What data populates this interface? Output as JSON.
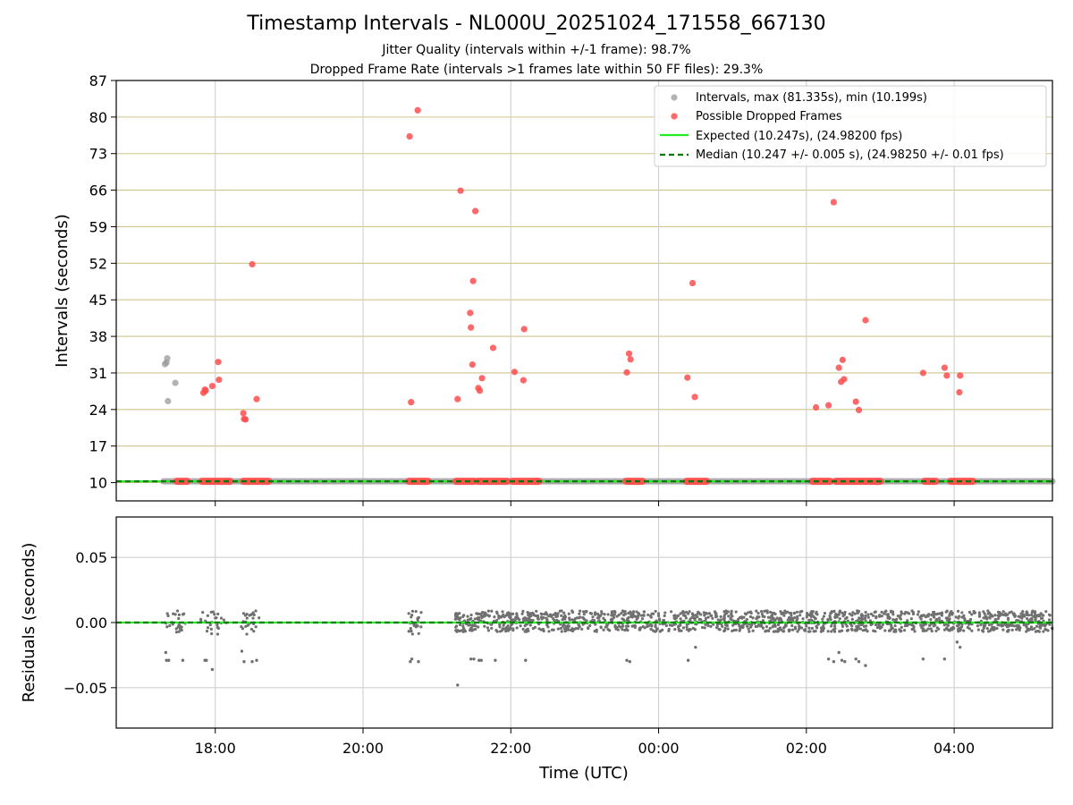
{
  "chart_data": [
    {
      "type": "scatter",
      "title": "Timestamp Intervals - NL000U_20251024_171558_667130",
      "subtitle_lines": [
        "Jitter Quality (intervals within +/-1 frame): 98.7%",
        "Dropped Frame Rate (intervals >1 frames late within 50 FF files): 29.3%"
      ],
      "xlabel": "",
      "ylabel": "Intervals (seconds)",
      "x_units": "hours since 17:00 UTC",
      "xlim": [
        -0.34,
        12.33
      ],
      "ylim": [
        6.5,
        87
      ],
      "yticks": [
        10,
        17,
        24,
        31,
        38,
        45,
        52,
        59,
        66,
        73,
        80,
        87
      ],
      "ygrid_color": "#cfc48c",
      "legend_position": "top-right",
      "legend": [
        "Intervals, max (81.335s), min (10.199s)",
        "Possible Dropped Frames",
        "Expected (10.247s), (24.98200 fps)",
        "Median (10.247 +/- 0.005 s), (24.98250 +/- 0.01 fps)"
      ],
      "series": [
        {
          "name": "Intervals, max (81.335s), min (10.199s)",
          "color": "#999999",
          "points": [
            [
              0.32,
              32.7
            ],
            [
              0.34,
              33.0
            ],
            [
              0.35,
              33.8
            ],
            [
              0.36,
              25.6
            ],
            [
              0.46,
              29.1
            ]
          ],
          "baseline": {
            "y": 10.25,
            "x_segments": [
              [
                0.3,
                12.33
              ]
            ]
          }
        },
        {
          "name": "Possible Dropped Frames",
          "color": "#ff4d4d",
          "points": [
            [
              0.84,
              27.2
            ],
            [
              0.86,
              27.8
            ],
            [
              0.87,
              27.6
            ],
            [
              0.96,
              28.5
            ],
            [
              1.04,
              33.1
            ],
            [
              1.05,
              29.7
            ],
            [
              1.38,
              23.3
            ],
            [
              1.39,
              22.2
            ],
            [
              1.41,
              22.1
            ],
            [
              1.5,
              51.8
            ],
            [
              1.56,
              26.0
            ],
            [
              3.63,
              76.3
            ],
            [
              3.65,
              25.4
            ],
            [
              3.74,
              81.3
            ],
            [
              4.28,
              26.0
            ],
            [
              4.32,
              65.9
            ],
            [
              4.45,
              42.5
            ],
            [
              4.46,
              39.7
            ],
            [
              4.48,
              32.6
            ],
            [
              4.49,
              48.6
            ],
            [
              4.52,
              62.0
            ],
            [
              4.56,
              28.1
            ],
            [
              4.58,
              27.6
            ],
            [
              4.61,
              30.0
            ],
            [
              4.76,
              35.8
            ],
            [
              5.05,
              31.2
            ],
            [
              5.18,
              39.4
            ],
            [
              5.17,
              29.6
            ],
            [
              6.57,
              31.1
            ],
            [
              6.6,
              34.7
            ],
            [
              6.62,
              33.6
            ],
            [
              7.39,
              30.1
            ],
            [
              7.46,
              48.2
            ],
            [
              7.49,
              26.4
            ],
            [
              9.13,
              24.4
            ],
            [
              9.3,
              24.8
            ],
            [
              9.37,
              63.7
            ],
            [
              9.44,
              32.0
            ],
            [
              9.47,
              29.3
            ],
            [
              9.49,
              33.5
            ],
            [
              9.51,
              29.8
            ],
            [
              9.67,
              25.5
            ],
            [
              9.71,
              23.9
            ],
            [
              9.8,
              41.1
            ],
            [
              10.58,
              31.0
            ],
            [
              10.87,
              32.0
            ],
            [
              10.9,
              30.5
            ],
            [
              11.07,
              27.3
            ],
            [
              11.08,
              30.5
            ]
          ],
          "baseline": {
            "y": 10.25,
            "x_segments": [
              [
                0.48,
                0.62
              ],
              [
                0.82,
                1.2
              ],
              [
                1.38,
                1.72
              ],
              [
                3.62,
                3.88
              ],
              [
                4.26,
                4.5
              ],
              [
                4.55,
                4.95
              ],
              [
                5.02,
                5.38
              ],
              [
                6.56,
                6.78
              ],
              [
                7.38,
                7.65
              ],
              [
                9.08,
                9.32
              ],
              [
                9.4,
                10.0
              ],
              [
                10.6,
                10.75
              ],
              [
                10.95,
                11.25
              ]
            ]
          }
        },
        {
          "name": "Expected (10.247s), (24.98200 fps)",
          "color": "#22ee22",
          "line_style": "solid",
          "y": 10.247
        },
        {
          "name": "Median (10.247 +/- 0.005 s), (24.98250 +/- 0.01 fps)",
          "color": "#007700",
          "line_style": "dashed",
          "y": 10.247
        }
      ]
    },
    {
      "type": "scatter",
      "xlabel": "Time (UTC)",
      "ylabel": "Residuals (seconds)",
      "xlim": [
        -0.34,
        12.33
      ],
      "ylim": [
        -0.081,
        0.081
      ],
      "yticks": [
        0.05,
        0.0,
        -0.05
      ],
      "ytick_labels": [
        "0.05",
        "0.00",
        "−0.05"
      ],
      "xticks": [
        1,
        3,
        5,
        7,
        9,
        11
      ],
      "xtick_labels": [
        "18:00",
        "20:00",
        "22:00",
        "00:00",
        "02:00",
        "04:00"
      ],
      "series": [
        {
          "name": "Residuals",
          "color": "#707070",
          "clusters": [
            [
              0.3,
              0.6
            ],
            [
              0.8,
              1.15
            ],
            [
              1.35,
              1.6
            ],
            [
              3.6,
              3.8
            ],
            [
              4.25,
              12.33
            ]
          ],
          "dense_band": {
            "x_range": [
              4.35,
              12.33
            ],
            "y_range": [
              -0.007,
              0.009
            ]
          },
          "outliers": [
            [
              0.33,
              -0.023
            ],
            [
              0.34,
              -0.029
            ],
            [
              0.37,
              -0.029
            ],
            [
              0.56,
              -0.029
            ],
            [
              0.86,
              -0.029
            ],
            [
              0.88,
              -0.029
            ],
            [
              0.96,
              -0.036
            ],
            [
              1.36,
              -0.022
            ],
            [
              1.39,
              -0.03
            ],
            [
              1.5,
              -0.03
            ],
            [
              1.56,
              -0.029
            ],
            [
              3.64,
              -0.03
            ],
            [
              3.66,
              -0.028
            ],
            [
              3.75,
              -0.03
            ],
            [
              4.28,
              -0.048
            ],
            [
              4.46,
              -0.028
            ],
            [
              4.5,
              -0.028
            ],
            [
              4.57,
              -0.029
            ],
            [
              4.6,
              -0.029
            ],
            [
              4.79,
              -0.029
            ],
            [
              5.2,
              -0.029
            ],
            [
              6.57,
              -0.029
            ],
            [
              6.61,
              -0.03
            ],
            [
              7.4,
              -0.029
            ],
            [
              7.5,
              -0.019
            ],
            [
              9.3,
              -0.028
            ],
            [
              9.37,
              -0.03
            ],
            [
              9.44,
              -0.023
            ],
            [
              9.48,
              -0.029
            ],
            [
              9.52,
              -0.03
            ],
            [
              9.67,
              -0.028
            ],
            [
              9.71,
              -0.03
            ],
            [
              9.8,
              -0.033
            ],
            [
              10.58,
              -0.028
            ],
            [
              10.87,
              -0.028
            ],
            [
              11.04,
              -0.015
            ],
            [
              11.08,
              -0.019
            ]
          ]
        },
        {
          "name": "Expected",
          "color": "#22ee22",
          "line_style": "solid",
          "y": 0.0
        },
        {
          "name": "Median",
          "color": "#007700",
          "line_style": "dashed",
          "y": 0.0
        }
      ]
    }
  ]
}
